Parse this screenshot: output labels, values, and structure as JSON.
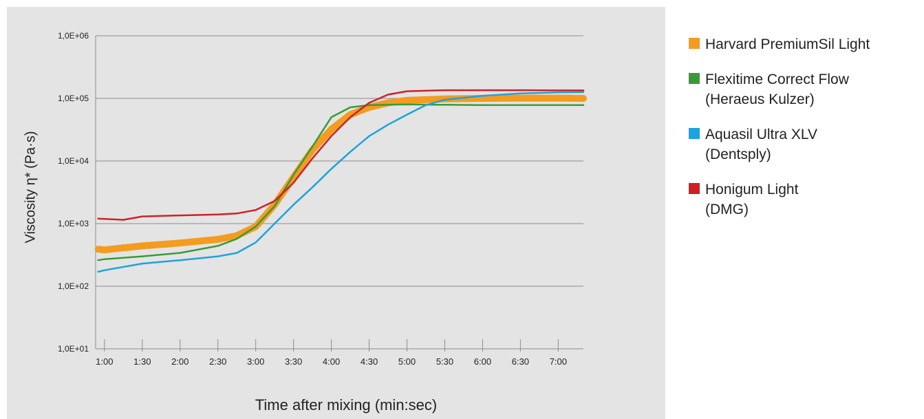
{
  "chart_data": {
    "type": "line",
    "xlabel": "Time after mixing (min:sec)",
    "ylabel": "Viscosity η* (Pa·s)",
    "yscale": "log",
    "ylim": [
      10,
      1000000
    ],
    "xlim": [
      "0:53",
      "7:20"
    ],
    "y_tick_labels": [
      "1,0E+01",
      "1,0E+02",
      "1,0E+03",
      "1,0E+04",
      "1,0E+05",
      "1,0E+06"
    ],
    "x_tick_labels": [
      "1:00",
      "1:30",
      "2:00",
      "2:30",
      "3:00",
      "3:30",
      "4:00",
      "4:30",
      "5:00",
      "5:30",
      "6:00",
      "6:30",
      "7:00"
    ],
    "grid": "horizontal",
    "legend_position": "right",
    "series": [
      {
        "name": "Harvard PremiumSil Light",
        "color": "#f39c1f",
        "points": [
          [
            "0:55",
            390
          ],
          [
            "1:00",
            380
          ],
          [
            "1:30",
            440
          ],
          [
            "2:00",
            490
          ],
          [
            "2:30",
            560
          ],
          [
            "2:45",
            640
          ],
          [
            "3:00",
            900
          ],
          [
            "3:15",
            2000
          ],
          [
            "3:30",
            5500
          ],
          [
            "3:45",
            15000
          ],
          [
            "4:00",
            32000
          ],
          [
            "4:15",
            55000
          ],
          [
            "4:30",
            72000
          ],
          [
            "4:45",
            85000
          ],
          [
            "5:00",
            93000
          ],
          [
            "5:30",
            98000
          ],
          [
            "6:00",
            100000
          ],
          [
            "6:30",
            101000
          ],
          [
            "7:00",
            101000
          ],
          [
            "7:20",
            100000
          ]
        ]
      },
      {
        "name": "Flexitime Correct Flow\n(Heraeus Kulzer)",
        "color": "#3a9a3a",
        "points": [
          [
            "0:55",
            260
          ],
          [
            "1:00",
            270
          ],
          [
            "1:30",
            300
          ],
          [
            "2:00",
            340
          ],
          [
            "2:30",
            440
          ],
          [
            "2:45",
            570
          ],
          [
            "3:00",
            900
          ],
          [
            "3:15",
            1900
          ],
          [
            "3:30",
            6000
          ],
          [
            "3:45",
            17000
          ],
          [
            "4:00",
            50000
          ],
          [
            "4:15",
            72000
          ],
          [
            "4:30",
            78000
          ],
          [
            "5:00",
            80000
          ],
          [
            "5:30",
            79000
          ],
          [
            "6:00",
            78000
          ],
          [
            "6:30",
            78000
          ],
          [
            "7:00",
            78000
          ],
          [
            "7:20",
            78000
          ]
        ]
      },
      {
        "name": "Aquasil Ultra XLV\n(Dentsply)",
        "color": "#1aa3e0",
        "points": [
          [
            "0:55",
            170
          ],
          [
            "1:00",
            180
          ],
          [
            "1:30",
            230
          ],
          [
            "2:00",
            260
          ],
          [
            "2:30",
            300
          ],
          [
            "2:45",
            340
          ],
          [
            "3:00",
            500
          ],
          [
            "3:15",
            1000
          ],
          [
            "3:30",
            2000
          ],
          [
            "3:45",
            3800
          ],
          [
            "4:00",
            7500
          ],
          [
            "4:15",
            14000
          ],
          [
            "4:30",
            25000
          ],
          [
            "4:45",
            38000
          ],
          [
            "5:00",
            55000
          ],
          [
            "5:15",
            78000
          ],
          [
            "5:30",
            95000
          ],
          [
            "6:00",
            110000
          ],
          [
            "6:30",
            120000
          ],
          [
            "7:00",
            125000
          ],
          [
            "7:20",
            126000
          ]
        ]
      },
      {
        "name": "Honigum Light\n(DMG)",
        "color": "#cf2027",
        "points": [
          [
            "0:55",
            1200
          ],
          [
            "1:15",
            1150
          ],
          [
            "1:30",
            1300
          ],
          [
            "2:00",
            1350
          ],
          [
            "2:30",
            1400
          ],
          [
            "2:45",
            1450
          ],
          [
            "3:00",
            1650
          ],
          [
            "3:15",
            2300
          ],
          [
            "3:30",
            4500
          ],
          [
            "3:45",
            11000
          ],
          [
            "4:00",
            25000
          ],
          [
            "4:15",
            50000
          ],
          [
            "4:30",
            85000
          ],
          [
            "4:45",
            115000
          ],
          [
            "5:00",
            130000
          ],
          [
            "5:30",
            135000
          ],
          [
            "6:00",
            135000
          ],
          [
            "6:30",
            135000
          ],
          [
            "7:00",
            134000
          ],
          [
            "7:20",
            134000
          ]
        ]
      }
    ]
  }
}
